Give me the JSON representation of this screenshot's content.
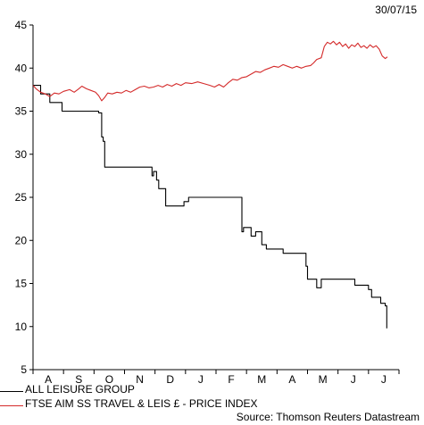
{
  "date_label": "30/07/15",
  "source_label": "Source: Thomson Reuters Datastream",
  "chart_data": {
    "type": "line",
    "title": "",
    "xlabel": "",
    "ylabel": "",
    "ylim": [
      5,
      45
    ],
    "yticks": [
      5,
      10,
      15,
      20,
      25,
      30,
      35,
      40,
      45
    ],
    "xlim": [
      0,
      12
    ],
    "month_ticks": [
      "A",
      "S",
      "O",
      "N",
      "D",
      "J",
      "F",
      "M",
      "A",
      "M",
      "J",
      "J"
    ],
    "grid": false,
    "legend_position": "bottom-left",
    "series": [
      {
        "name": "ALL LEISURE GROUP",
        "color": "#000000",
        "step": true,
        "points": [
          [
            0,
            38
          ],
          [
            0.25,
            37
          ],
          [
            0.55,
            36
          ],
          [
            0.95,
            35
          ],
          [
            1.6,
            35
          ],
          [
            2.0,
            35
          ],
          [
            2.15,
            34.8
          ],
          [
            2.25,
            32
          ],
          [
            2.3,
            31.5
          ],
          [
            2.35,
            28.5
          ],
          [
            3.0,
            28.5
          ],
          [
            3.85,
            28.5
          ],
          [
            3.9,
            27.5
          ],
          [
            3.95,
            28
          ],
          [
            4.05,
            27
          ],
          [
            4.12,
            26
          ],
          [
            4.3,
            26
          ],
          [
            4.35,
            24
          ],
          [
            4.9,
            24
          ],
          [
            4.95,
            24.5
          ],
          [
            5.1,
            25
          ],
          [
            6.0,
            25
          ],
          [
            6.8,
            25
          ],
          [
            6.85,
            21
          ],
          [
            6.9,
            21.5
          ],
          [
            7.05,
            21.5
          ],
          [
            7.15,
            20.5
          ],
          [
            7.3,
            21
          ],
          [
            7.45,
            21
          ],
          [
            7.5,
            19.5
          ],
          [
            7.65,
            19
          ],
          [
            8.1,
            19
          ],
          [
            8.2,
            18.5
          ],
          [
            8.85,
            18.5
          ],
          [
            8.95,
            17
          ],
          [
            9.0,
            15.5
          ],
          [
            9.25,
            15.5
          ],
          [
            9.3,
            14.5
          ],
          [
            9.4,
            14.5
          ],
          [
            9.45,
            15.5
          ],
          [
            10.45,
            15.5
          ],
          [
            10.55,
            14.8
          ],
          [
            10.9,
            14.8
          ],
          [
            11.0,
            14.3
          ],
          [
            11.1,
            13.4
          ],
          [
            11.3,
            13.4
          ],
          [
            11.4,
            12.7
          ],
          [
            11.55,
            12.4
          ],
          [
            11.6,
            9.8
          ]
        ]
      },
      {
        "name": "FTSE AIM SS TRAVEL & LEIS £ - PRICE INDEX",
        "color": "#d42a2a",
        "step": false,
        "points": [
          [
            0,
            38
          ],
          [
            0.1,
            37.6
          ],
          [
            0.25,
            37.2
          ],
          [
            0.4,
            37.0
          ],
          [
            0.55,
            36.7
          ],
          [
            0.7,
            37.1
          ],
          [
            0.85,
            37.0
          ],
          [
            1.0,
            37.3
          ],
          [
            1.2,
            37.5
          ],
          [
            1.35,
            37.2
          ],
          [
            1.5,
            37.6
          ],
          [
            1.6,
            37.9
          ],
          [
            1.75,
            37.6
          ],
          [
            1.9,
            37.4
          ],
          [
            2.05,
            37.2
          ],
          [
            2.15,
            36.8
          ],
          [
            2.25,
            36.2
          ],
          [
            2.35,
            36.6
          ],
          [
            2.45,
            37.1
          ],
          [
            2.6,
            37.0
          ],
          [
            2.75,
            37.2
          ],
          [
            2.9,
            37.1
          ],
          [
            3.05,
            37.4
          ],
          [
            3.2,
            37.2
          ],
          [
            3.35,
            37.5
          ],
          [
            3.5,
            37.8
          ],
          [
            3.65,
            37.9
          ],
          [
            3.8,
            37.7
          ],
          [
            3.95,
            37.8
          ],
          [
            4.1,
            38.0
          ],
          [
            4.25,
            37.8
          ],
          [
            4.4,
            38.1
          ],
          [
            4.55,
            37.9
          ],
          [
            4.7,
            38.2
          ],
          [
            4.85,
            38.0
          ],
          [
            5.0,
            38.3
          ],
          [
            5.2,
            38.2
          ],
          [
            5.4,
            38.4
          ],
          [
            5.6,
            38.2
          ],
          [
            5.8,
            38.0
          ],
          [
            5.95,
            37.8
          ],
          [
            6.1,
            38.1
          ],
          [
            6.25,
            37.8
          ],
          [
            6.4,
            38.3
          ],
          [
            6.55,
            38.7
          ],
          [
            6.7,
            38.6
          ],
          [
            6.85,
            38.9
          ],
          [
            7.0,
            39.0
          ],
          [
            7.15,
            39.3
          ],
          [
            7.3,
            39.6
          ],
          [
            7.45,
            39.5
          ],
          [
            7.6,
            39.8
          ],
          [
            7.75,
            40.0
          ],
          [
            7.9,
            40.2
          ],
          [
            8.05,
            40.1
          ],
          [
            8.2,
            40.4
          ],
          [
            8.35,
            40.2
          ],
          [
            8.5,
            40.0
          ],
          [
            8.65,
            40.2
          ],
          [
            8.8,
            40.0
          ],
          [
            8.95,
            40.2
          ],
          [
            9.1,
            40.3
          ],
          [
            9.2,
            40.6
          ],
          [
            9.3,
            41.0
          ],
          [
            9.45,
            41.2
          ],
          [
            9.55,
            42.5
          ],
          [
            9.65,
            43.0
          ],
          [
            9.75,
            42.8
          ],
          [
            9.85,
            43.1
          ],
          [
            9.95,
            42.7
          ],
          [
            10.05,
            43.0
          ],
          [
            10.15,
            42.5
          ],
          [
            10.25,
            42.8
          ],
          [
            10.35,
            42.3
          ],
          [
            10.45,
            42.7
          ],
          [
            10.55,
            42.5
          ],
          [
            10.65,
            42.9
          ],
          [
            10.75,
            42.4
          ],
          [
            10.85,
            42.6
          ],
          [
            10.95,
            42.3
          ],
          [
            11.05,
            42.7
          ],
          [
            11.15,
            42.4
          ],
          [
            11.25,
            42.6
          ],
          [
            11.35,
            42.2
          ],
          [
            11.45,
            41.4
          ],
          [
            11.55,
            41.1
          ],
          [
            11.62,
            41.3
          ]
        ]
      }
    ]
  }
}
